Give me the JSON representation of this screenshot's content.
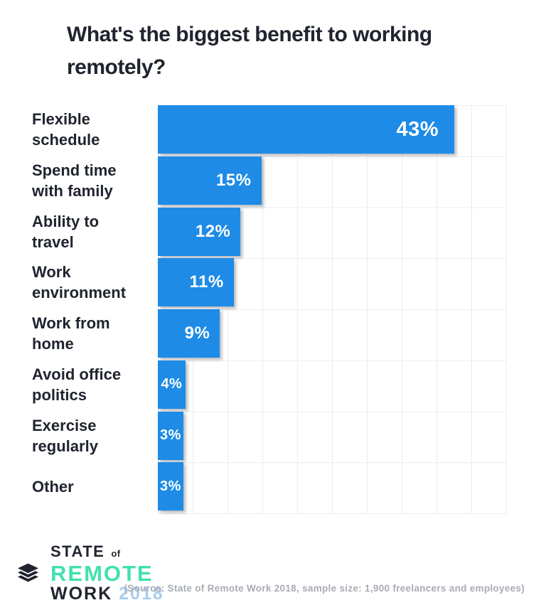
{
  "title": {
    "full": "What's the biggest benefit to working remotely?",
    "lines": [
      "What's the biggest benefit to working",
      "remotely?"
    ]
  },
  "chart_data": {
    "type": "bar",
    "orientation": "horizontal",
    "title": "What's the biggest benefit to working remotely?",
    "categories": [
      "Flexible schedule",
      "Spend time with family",
      "Ability to travel",
      "Work environment",
      "Work from home",
      "Avoid office politics",
      "Exercise regularly",
      "Other"
    ],
    "category_display": [
      "Flexible\nschedule",
      "Spend time\nwith family",
      "Ability to\ntravel",
      "Work\nenvironment",
      "Work from\nhome",
      "Avoid office\npolitics",
      "Exercise\nregularly",
      "Other"
    ],
    "values": [
      43,
      15,
      12,
      11,
      9,
      4,
      3,
      3
    ],
    "value_labels": [
      "43%",
      "15%",
      "12%",
      "11%",
      "9%",
      "4%",
      "3%",
      "3%"
    ],
    "unit": "%",
    "xlim": [
      0,
      50
    ],
    "grid": true,
    "gridline_step_percent": 5,
    "legend": "none",
    "bar_color": "#1e8be6",
    "value_label_color": "#ffffff"
  },
  "footer": {
    "logo": {
      "icon": "stacked-layers-icon",
      "line1_main": "STATE",
      "line1_suffix": "of",
      "line2": "REMOTE",
      "line3_main": "WORK",
      "line3_year": "2018"
    },
    "source_note": "(Source: State of Remote Work 2018, sample size: 1,900 freelancers and employees)"
  },
  "colors": {
    "bar_blue": "#1e8be6",
    "dark_navy": "#20242f",
    "mint_green": "#41e1af",
    "year_blue": "#a9cdf0",
    "source_gray": "#a8acb3",
    "grid_gray": "#ececf1",
    "value_white": "#ffffff",
    "background": "#ffffff"
  }
}
